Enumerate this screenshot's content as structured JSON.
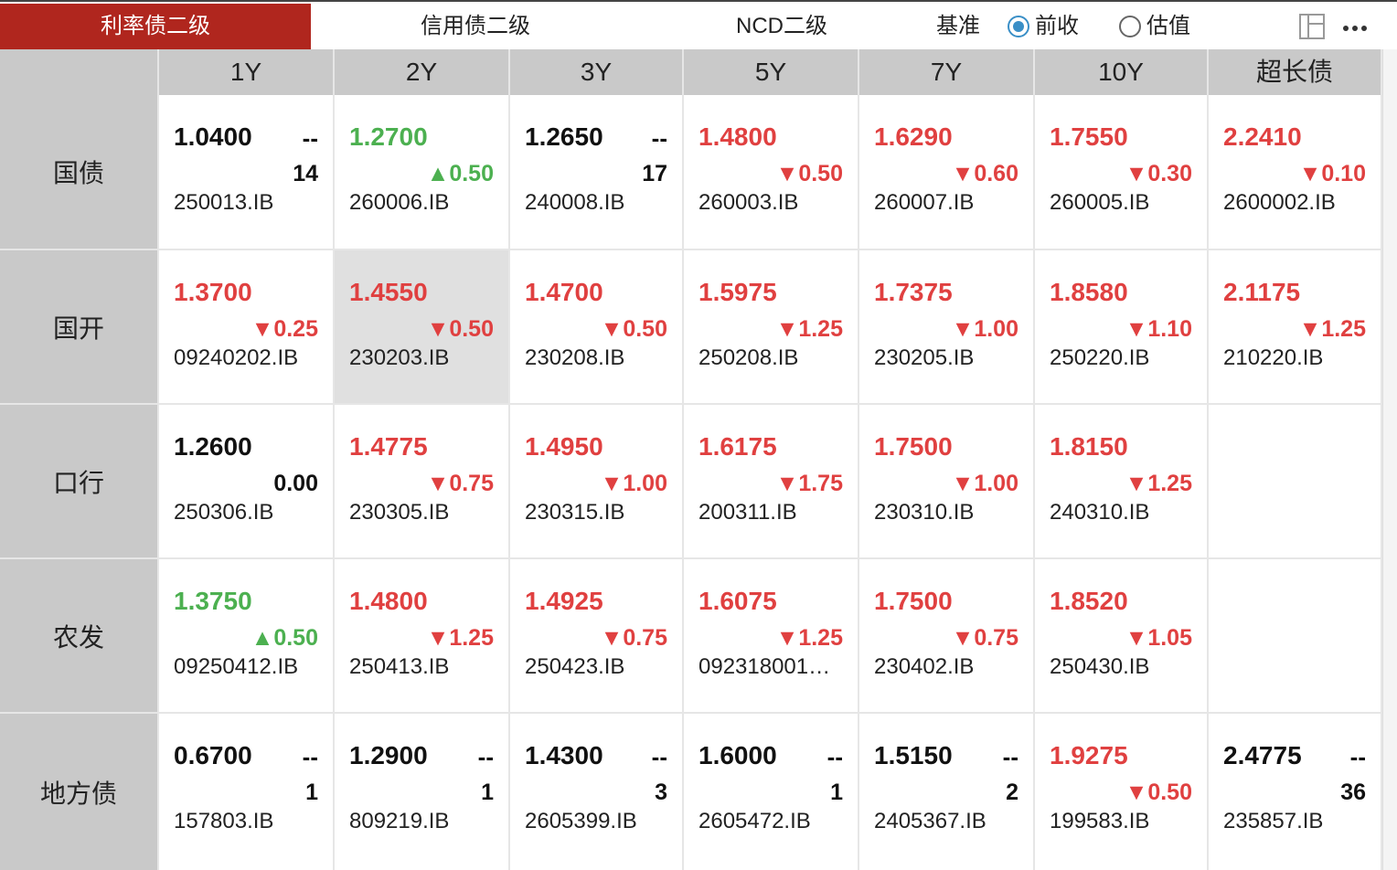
{
  "tabs": [
    "利率债二级",
    "信用债二级",
    "NCD二级"
  ],
  "base": {
    "label": "基准",
    "options": [
      "前收",
      "估值"
    ],
    "selected": 0
  },
  "columns": [
    "1Y",
    "2Y",
    "3Y",
    "5Y",
    "7Y",
    "10Y",
    "超长债"
  ],
  "rows": [
    {
      "name": "国债",
      "cells": [
        {
          "yield": "1.0400",
          "mark": "--",
          "change": "14",
          "code": "250013.IB"
        },
        {
          "yield": "1.2700",
          "change": "▲0.50",
          "code": "260006.IB"
        },
        {
          "yield": "1.2650",
          "mark": "--",
          "change": "17",
          "code": "240008.IB"
        },
        {
          "yield": "1.4800",
          "change": "▼0.50",
          "code": "260003.IB"
        },
        {
          "yield": "1.6290",
          "change": "▼0.60",
          "code": "260007.IB"
        },
        {
          "yield": "1.7550",
          "change": "▼0.30",
          "code": "260005.IB"
        },
        {
          "yield": "2.2410",
          "change": "▼0.10",
          "code": "2600002.IB"
        }
      ]
    },
    {
      "name": "国开",
      "cells": [
        {
          "yield": "1.3700",
          "change": "▼0.25",
          "code": "09240202.IB"
        },
        {
          "yield": "1.4550",
          "change": "▼0.50",
          "code": "230203.IB"
        },
        {
          "yield": "1.4700",
          "change": "▼0.50",
          "code": "230208.IB"
        },
        {
          "yield": "1.5975",
          "change": "▼1.25",
          "code": "250208.IB"
        },
        {
          "yield": "1.7375",
          "change": "▼1.00",
          "code": "230205.IB"
        },
        {
          "yield": "1.8580",
          "change": "▼1.10",
          "code": "250220.IB"
        },
        {
          "yield": "2.1175",
          "change": "▼1.25",
          "code": "210220.IB"
        }
      ]
    },
    {
      "name": "口行",
      "cells": [
        {
          "yield": "1.2600",
          "change": "0.00",
          "code": "250306.IB"
        },
        {
          "yield": "1.4775",
          "change": "▼0.75",
          "code": "230305.IB"
        },
        {
          "yield": "1.4950",
          "change": "▼1.00",
          "code": "230315.IB"
        },
        {
          "yield": "1.6175",
          "change": "▼1.75",
          "code": "200311.IB"
        },
        {
          "yield": "1.7500",
          "change": "▼1.00",
          "code": "230310.IB"
        },
        {
          "yield": "1.8150",
          "change": "▼1.25",
          "code": "240310.IB"
        },
        null
      ]
    },
    {
      "name": "农发",
      "cells": [
        {
          "yield": "1.3750",
          "change": "▲0.50",
          "code": "09250412.IB"
        },
        {
          "yield": "1.4800",
          "change": "▼1.25",
          "code": "250413.IB"
        },
        {
          "yield": "1.4925",
          "change": "▼0.75",
          "code": "250423.IB"
        },
        {
          "yield": "1.6075",
          "change": "▼1.25",
          "code": "092318001…"
        },
        {
          "yield": "1.7500",
          "change": "▼0.75",
          "code": "230402.IB"
        },
        {
          "yield": "1.8520",
          "change": "▼1.05",
          "code": "250430.IB"
        },
        null
      ]
    },
    {
      "name": "地方债",
      "cells": [
        {
          "yield": "0.6700",
          "mark": "--",
          "change": "1",
          "code": "157803.IB"
        },
        {
          "yield": "1.2900",
          "mark": "--",
          "change": "1",
          "code": "809219.IB"
        },
        {
          "yield": "1.4300",
          "mark": "--",
          "change": "3",
          "code": "2605399.IB"
        },
        {
          "yield": "1.6000",
          "mark": "--",
          "change": "1",
          "code": "2605472.IB"
        },
        {
          "yield": "1.5150",
          "mark": "--",
          "change": "2",
          "code": "2405367.IB"
        },
        {
          "yield": "1.9275",
          "change": "▼0.50",
          "code": "199583.IB"
        },
        {
          "yield": "2.4775",
          "mark": "--",
          "change": "36",
          "code": "235857.IB"
        }
      ]
    }
  ]
}
